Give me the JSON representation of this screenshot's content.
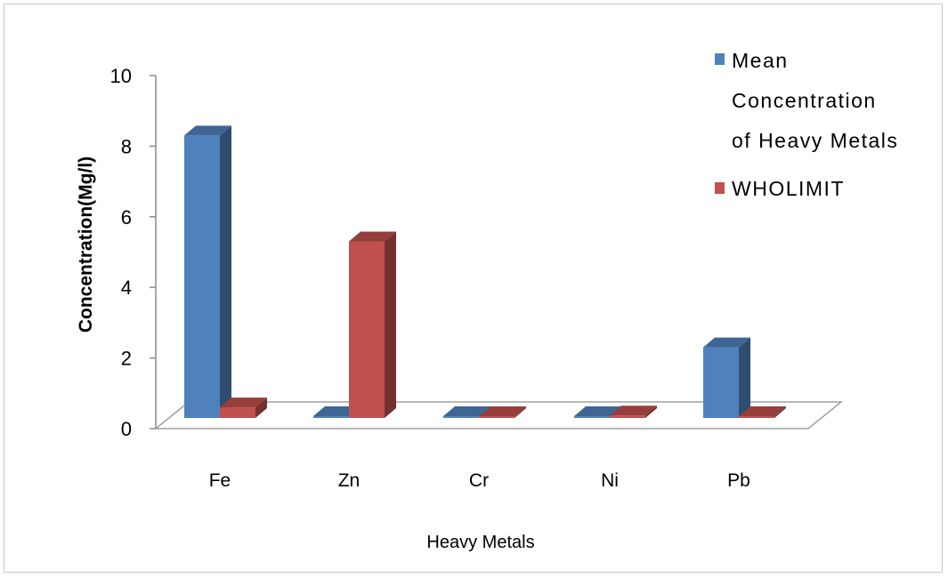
{
  "chart_data": {
    "type": "bar",
    "style": "3d-clustered-column",
    "categories": [
      "Fe",
      "Zn",
      "Cr",
      "Ni",
      "Pb"
    ],
    "series": [
      {
        "name": "Mean Concentration of Heavy Metals",
        "values": [
          8.0,
          0.05,
          0.05,
          0.05,
          2.0
        ],
        "color": "#4f81bd"
      },
      {
        "name": "WHOLIMIT",
        "values": [
          0.3,
          5.0,
          0.05,
          0.07,
          0.01
        ],
        "color": "#c0504d"
      }
    ],
    "xlabel": "Heavy Metals",
    "ylabel": "Concentration(Mg/l)",
    "ylim": [
      0,
      10
    ],
    "yticks": [
      0,
      2,
      4,
      6,
      8,
      10
    ],
    "legend_position": "right",
    "grid": false
  }
}
